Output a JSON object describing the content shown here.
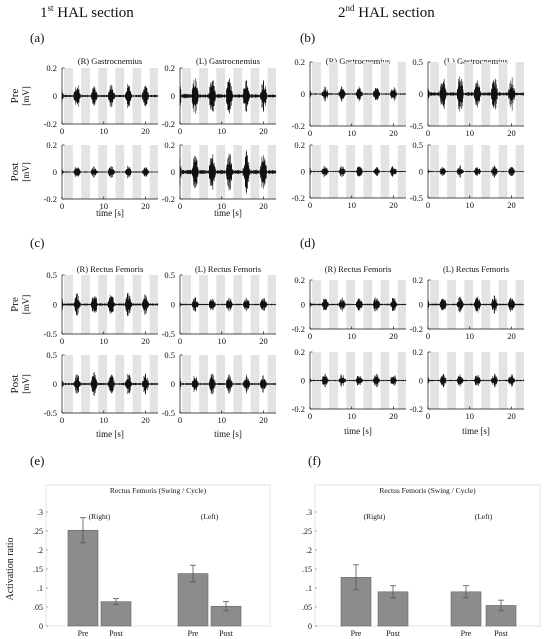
{
  "headings": {
    "left_num": "1",
    "left_sup": "st",
    "left_text": " HAL section",
    "right_num": "2",
    "right_sup": "nd",
    "right_text": " HAL section"
  },
  "chart_data": [
    {
      "type": "line",
      "panel": "(a)",
      "title_left": "(R) Gastrocnemius",
      "title_right": "(L) Gastrocnemius",
      "row_labels": [
        "Pre",
        "Post"
      ],
      "ylabel": "[mV]",
      "xlabel": "time [s]",
      "xlim": [
        0,
        23
      ],
      "ylim": [
        -0.2,
        0.2
      ],
      "xticks": [
        0,
        10,
        20
      ],
      "yticks": [
        -0.2,
        0,
        0.2
      ],
      "shaded_intervals_s": [
        [
          0.5,
          2.6
        ],
        [
          4.6,
          6.7
        ],
        [
          8.7,
          10.8
        ],
        [
          12.8,
          14.9
        ],
        [
          16.9,
          19.0
        ],
        [
          21.0,
          23.0
        ]
      ],
      "signal": "EMG (mV), bursts during unshaded stance periods",
      "series": [
        {
          "name": "Pre (R)",
          "burst_amplitude": [
            0.09,
            0.09,
            0.08,
            0.09,
            0.09,
            0.09
          ]
        },
        {
          "name": "Pre (L)",
          "burst_amplitude": [
            0.16,
            0.14,
            0.15,
            0.13,
            0.15,
            0.12
          ]
        },
        {
          "name": "Post (R)",
          "burst_amplitude": [
            0.05,
            0.05,
            0.05,
            0.05,
            0.05,
            0.04
          ]
        },
        {
          "name": "Post (L)",
          "burst_amplitude": [
            0.17,
            0.15,
            0.17,
            0.16,
            0.18,
            0.15
          ]
        }
      ]
    },
    {
      "type": "line",
      "panel": "(b)",
      "title_left": "(R) Gastrocnemius",
      "title_right": "(L) Gastrocnemius",
      "xlim": [
        0,
        23
      ],
      "ylim_left": [
        -0.2,
        0.2
      ],
      "yticks_left": [
        -0.2,
        0,
        0.2
      ],
      "ylim_right": [
        -0.5,
        0.5
      ],
      "yticks_right": [
        -0.5,
        0,
        0.5
      ],
      "xticks": [
        0,
        10,
        20
      ],
      "shaded_intervals_s": [
        [
          0.5,
          2.6
        ],
        [
          4.6,
          6.7
        ],
        [
          8.7,
          10.8
        ],
        [
          12.8,
          14.9
        ],
        [
          16.9,
          19.0
        ],
        [
          21.0,
          23.0
        ]
      ],
      "signal": "EMG (mV), bursts during unshaded stance periods",
      "series": [
        {
          "name": "Pre (R)",
          "burst_amplitude": [
            0.05,
            0.05,
            0.05,
            0.05,
            0.05,
            0.05
          ]
        },
        {
          "name": "Pre (L)",
          "burst_amplitude": [
            0.3,
            0.28,
            0.32,
            0.27,
            0.3,
            0.28
          ]
        },
        {
          "name": "Post (R)",
          "burst_amplitude": [
            0.05,
            0.05,
            0.05,
            0.05,
            0.04,
            0.05
          ]
        },
        {
          "name": "Post (L)",
          "burst_amplitude": [
            0.12,
            0.1,
            0.12,
            0.1,
            0.12,
            0.1
          ]
        }
      ]
    },
    {
      "type": "line",
      "panel": "(c)",
      "title_left": "(R) Rectus Femoris",
      "title_right": "(L) Rectus Femoris",
      "row_labels": [
        "Pre",
        "Post"
      ],
      "ylabel": "[mV]",
      "xlabel": "time [s]",
      "xlim": [
        0,
        23
      ],
      "ylim": [
        -0.5,
        0.5
      ],
      "xticks": [
        0,
        10,
        20
      ],
      "yticks": [
        -0.5,
        0,
        0.5
      ],
      "shaded_intervals_s": [
        [
          0.5,
          2.6
        ],
        [
          4.6,
          6.7
        ],
        [
          8.7,
          10.8
        ],
        [
          12.8,
          14.9
        ],
        [
          16.9,
          19.0
        ],
        [
          21.0,
          23.0
        ]
      ],
      "signal": "EMG (mV), bursts during unshaded stance periods",
      "series": [
        {
          "name": "Pre (R)",
          "burst_amplitude": [
            0.22,
            0.2,
            0.21,
            0.2,
            0.22,
            0.2
          ]
        },
        {
          "name": "Pre (L)",
          "burst_amplitude": [
            0.15,
            0.13,
            0.14,
            0.13,
            0.14,
            0.13
          ]
        },
        {
          "name": "Post (R)",
          "burst_amplitude": [
            0.2,
            0.19,
            0.21,
            0.19,
            0.2,
            0.19
          ]
        },
        {
          "name": "Post (L)",
          "burst_amplitude": [
            0.18,
            0.16,
            0.18,
            0.17,
            0.17,
            0.16
          ]
        }
      ]
    },
    {
      "type": "line",
      "panel": "(d)",
      "title_left": "(R) Rectus Femoris",
      "title_right": "(L) Rectus Femoris",
      "xlabel": "time [s]",
      "xlim": [
        0,
        23
      ],
      "ylim": [
        -0.2,
        0.2
      ],
      "xticks": [
        0,
        10,
        20
      ],
      "yticks": [
        -0.2,
        0,
        0.2
      ],
      "shaded_intervals_s": [
        [
          0.5,
          2.6
        ],
        [
          4.6,
          6.7
        ],
        [
          8.7,
          10.8
        ],
        [
          12.8,
          14.9
        ],
        [
          16.9,
          19.0
        ],
        [
          21.0,
          23.0
        ]
      ],
      "signal": "EMG (mV), bursts during unshaded stance periods",
      "series": [
        {
          "name": "Pre (R)",
          "burst_amplitude": [
            0.07,
            0.07,
            0.06,
            0.07,
            0.07,
            0.06
          ]
        },
        {
          "name": "Pre (L)",
          "burst_amplitude": [
            0.08,
            0.07,
            0.08,
            0.07,
            0.08,
            0.07
          ]
        },
        {
          "name": "Post (R)",
          "burst_amplitude": [
            0.05,
            0.05,
            0.05,
            0.05,
            0.05,
            0.05
          ]
        },
        {
          "name": "Post (L)",
          "burst_amplitude": [
            0.05,
            0.05,
            0.05,
            0.05,
            0.05,
            0.05
          ]
        }
      ]
    },
    {
      "type": "bar",
      "panel": "(e)",
      "title": "Rectus Femoris (Swing / Cycle)",
      "group_labels": [
        "(Right)",
        "(Left)"
      ],
      "categories": [
        "Pre",
        "Post",
        "Pre",
        "Post"
      ],
      "values": [
        0.252,
        0.064,
        0.138,
        0.052
      ],
      "errors": [
        0.033,
        0.008,
        0.022,
        0.012
      ],
      "ylabel": "Activation ratio",
      "ylim": [
        0,
        0.3
      ],
      "yticks": [
        0,
        0.05,
        0.1,
        0.15,
        0.2,
        0.25,
        0.3
      ],
      "color": "#8c8c8c"
    },
    {
      "type": "bar",
      "panel": "(f)",
      "title": "Rectus Femoris (Swing / Cycle)",
      "group_labels": [
        "(Right)",
        "(Left)"
      ],
      "categories": [
        "Pre",
        "Post",
        "Pre",
        "Post"
      ],
      "values": [
        0.128,
        0.09,
        0.09,
        0.054
      ],
      "errors": [
        0.033,
        0.016,
        0.016,
        0.014
      ],
      "ylim": [
        0,
        0.3
      ],
      "yticks": [
        0,
        0.05,
        0.1,
        0.15,
        0.2,
        0.25,
        0.3
      ],
      "color": "#8c8c8c"
    }
  ]
}
